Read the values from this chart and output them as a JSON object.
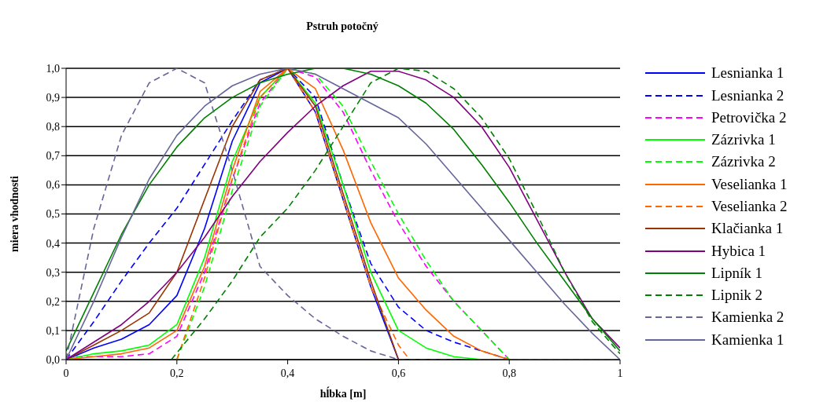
{
  "chart_data": {
    "type": "line",
    "title": "Pstruh potočný",
    "xlabel": "hĺbka [m]",
    "ylabel": "miera vhodnosti",
    "xlim": [
      0,
      1
    ],
    "xticks": [
      0,
      {
        "value": 0.2,
        "label": "0,2"
      },
      {
        "value": 0.4,
        "label": "0,4"
      },
      {
        "value": 0.6,
        "label": "0,6"
      },
      {
        "value": 0.8,
        "label": "0,8"
      },
      1
    ],
    "ylim": [
      0,
      1
    ],
    "yticks": [
      {
        "value": 0,
        "label": "0,0"
      },
      {
        "value": 0.1,
        "label": "0,1"
      },
      {
        "value": 0.2,
        "label": "0,2"
      },
      {
        "value": 0.3,
        "label": "0,3"
      },
      {
        "value": 0.4,
        "label": "0,4"
      },
      {
        "value": 0.5,
        "label": "0,5"
      },
      {
        "value": 0.6,
        "label": "0,6"
      },
      {
        "value": 0.7,
        "label": "0,7"
      },
      {
        "value": 0.8,
        "label": "0,8"
      },
      {
        "value": 0.9,
        "label": "0,9"
      },
      {
        "value": 1,
        "label": "1,0"
      }
    ],
    "grid": "y",
    "legend": "right",
    "series": [
      {
        "name": "Lesnianka 1",
        "color": "#0000ff",
        "line_style": "solid",
        "x": [
          0,
          0.05,
          0.1,
          0.15,
          0.2,
          0.25,
          0.3,
          0.35,
          0.4,
          0.45,
          0.5,
          0.55,
          0.6,
          1
        ],
        "values": [
          0,
          0.04,
          0.07,
          0.12,
          0.22,
          0.45,
          0.75,
          0.95,
          1.0,
          0.85,
          0.55,
          0.25,
          0,
          0
        ]
      },
      {
        "name": "Lesnianka 2",
        "color": "#0000ff",
        "line_style": "dashed",
        "x": [
          0,
          0.05,
          0.1,
          0.15,
          0.2,
          0.25,
          0.3,
          0.35,
          0.4,
          0.45,
          0.5,
          0.55,
          0.6,
          0.65,
          0.7,
          0.75,
          0.8,
          1
        ],
        "values": [
          0,
          0.13,
          0.27,
          0.4,
          0.52,
          0.67,
          0.82,
          0.96,
          1.0,
          0.9,
          0.6,
          0.33,
          0.18,
          0.1,
          0.06,
          0.03,
          0,
          0
        ]
      },
      {
        "name": "Petrovička 2",
        "color": "#ff00ff",
        "line_style": "dashed",
        "x": [
          0,
          0.1,
          0.15,
          0.2,
          0.25,
          0.3,
          0.35,
          0.4,
          0.45,
          0.5,
          0.55,
          0.6,
          0.65,
          0.7,
          0.75,
          0.8,
          1
        ],
        "values": [
          0.01,
          0.01,
          0.02,
          0.08,
          0.3,
          0.62,
          0.88,
          1.0,
          0.97,
          0.85,
          0.65,
          0.47,
          0.32,
          0.2,
          0.1,
          0,
          0
        ]
      },
      {
        "name": "Zázrivka 1",
        "color": "#00ff00",
        "line_style": "solid",
        "x": [
          0,
          0.05,
          0.1,
          0.15,
          0.2,
          0.25,
          0.3,
          0.35,
          0.4,
          0.45,
          0.5,
          0.55,
          0.6,
          0.65,
          0.7,
          0.75,
          1
        ],
        "values": [
          0,
          0.02,
          0.03,
          0.05,
          0.12,
          0.35,
          0.68,
          0.9,
          1.0,
          0.88,
          0.6,
          0.3,
          0.1,
          0.04,
          0.01,
          0,
          0
        ]
      },
      {
        "name": "Zázrivka 2",
        "color": "#00ff00",
        "line_style": "dashed",
        "x": [
          0.2,
          0.25,
          0.3,
          0.35,
          0.4,
          0.45,
          0.5,
          0.55,
          0.6,
          0.65,
          0.7,
          0.75,
          0.8,
          1
        ],
        "values": [
          0,
          0.25,
          0.58,
          0.87,
          1.0,
          0.98,
          0.87,
          0.68,
          0.5,
          0.34,
          0.2,
          0.1,
          0,
          0
        ]
      },
      {
        "name": "Veselianka 1",
        "color": "#ff6600",
        "line_style": "solid",
        "x": [
          0,
          0.05,
          0.1,
          0.15,
          0.2,
          0.25,
          0.3,
          0.35,
          0.4,
          0.45,
          0.5,
          0.55,
          0.6,
          0.65,
          0.7,
          0.75,
          0.8,
          1
        ],
        "values": [
          0,
          0.01,
          0.02,
          0.04,
          0.1,
          0.32,
          0.65,
          0.92,
          1.0,
          0.93,
          0.72,
          0.47,
          0.28,
          0.17,
          0.08,
          0.03,
          0,
          0
        ]
      },
      {
        "name": "Veselianka 2",
        "color": "#ff6600",
        "line_style": "dashed",
        "x": [
          0.2,
          0.25,
          0.3,
          0.35,
          0.4,
          0.45,
          0.5,
          0.55,
          0.6,
          0.62
        ],
        "values": [
          0,
          0.28,
          0.62,
          0.9,
          1.0,
          0.85,
          0.55,
          0.25,
          0.05,
          0
        ]
      },
      {
        "name": "Klačianka 1",
        "color": "#993300",
        "line_style": "solid",
        "x": [
          0,
          0.05,
          0.1,
          0.15,
          0.2,
          0.25,
          0.3,
          0.35,
          0.4,
          0.45,
          0.5,
          0.55,
          0.6
        ],
        "values": [
          0,
          0.05,
          0.1,
          0.16,
          0.3,
          0.55,
          0.8,
          0.96,
          1.0,
          0.87,
          0.57,
          0.27,
          0
        ]
      },
      {
        "name": "Hybica 1",
        "color": "#800080",
        "line_style": "solid",
        "x": [
          0,
          0.05,
          0.1,
          0.15,
          0.2,
          0.25,
          0.3,
          0.35,
          0.4,
          0.45,
          0.5,
          0.55,
          0.6,
          0.65,
          0.7,
          0.75,
          0.8,
          0.85,
          0.9,
          0.95,
          1
        ],
        "values": [
          0,
          0.06,
          0.12,
          0.2,
          0.3,
          0.42,
          0.56,
          0.68,
          0.78,
          0.87,
          0.94,
          0.99,
          0.99,
          0.96,
          0.9,
          0.8,
          0.66,
          0.48,
          0.3,
          0.14,
          0.04
        ]
      },
      {
        "name": "Lipník 1",
        "color": "#008000",
        "line_style": "solid",
        "x": [
          0,
          0.05,
          0.1,
          0.15,
          0.2,
          0.25,
          0.3,
          0.35,
          0.4,
          0.45,
          0.5,
          0.55,
          0.6,
          0.65,
          0.7,
          0.75,
          0.8,
          0.85,
          0.9,
          0.95,
          1
        ],
        "values": [
          0.03,
          0.23,
          0.43,
          0.6,
          0.73,
          0.83,
          0.9,
          0.95,
          0.98,
          1.0,
          1.0,
          0.98,
          0.94,
          0.88,
          0.79,
          0.67,
          0.54,
          0.4,
          0.27,
          0.14,
          0.03
        ]
      },
      {
        "name": "Lipnik 2",
        "color": "#008000",
        "line_style": "dashed",
        "x": [
          0.19,
          0.25,
          0.3,
          0.35,
          0.4,
          0.45,
          0.5,
          0.55,
          0.6,
          0.65,
          0.7,
          0.75,
          0.8,
          0.85,
          0.9,
          0.95,
          1
        ],
        "values": [
          0,
          0.14,
          0.27,
          0.42,
          0.52,
          0.65,
          0.8,
          0.95,
          1.0,
          0.99,
          0.93,
          0.83,
          0.69,
          0.5,
          0.3,
          0.13,
          0.02
        ]
      },
      {
        "name": "Kamienka 2",
        "color": "#666699",
        "line_style": "dashed",
        "x": [
          0,
          0.05,
          0.1,
          0.15,
          0.2,
          0.25,
          0.3,
          0.35,
          0.4,
          0.45,
          0.5,
          0.55,
          0.6,
          1
        ],
        "values": [
          0,
          0.45,
          0.77,
          0.95,
          1.0,
          0.95,
          0.65,
          0.32,
          0.22,
          0.14,
          0.08,
          0.03,
          0,
          0
        ]
      },
      {
        "name": "Kamienka 1",
        "color": "#666699",
        "line_style": "solid",
        "x": [
          0,
          0.05,
          0.1,
          0.15,
          0.2,
          0.25,
          0.3,
          0.35,
          0.4,
          0.45,
          0.5,
          0.55,
          0.6,
          0.65,
          0.7,
          0.75,
          0.8,
          0.85,
          0.9,
          0.95,
          1
        ],
        "values": [
          0,
          0.2,
          0.42,
          0.62,
          0.77,
          0.87,
          0.94,
          0.98,
          1.0,
          0.98,
          0.93,
          0.88,
          0.83,
          0.74,
          0.63,
          0.52,
          0.41,
          0.3,
          0.19,
          0.09,
          0
        ]
      }
    ]
  }
}
